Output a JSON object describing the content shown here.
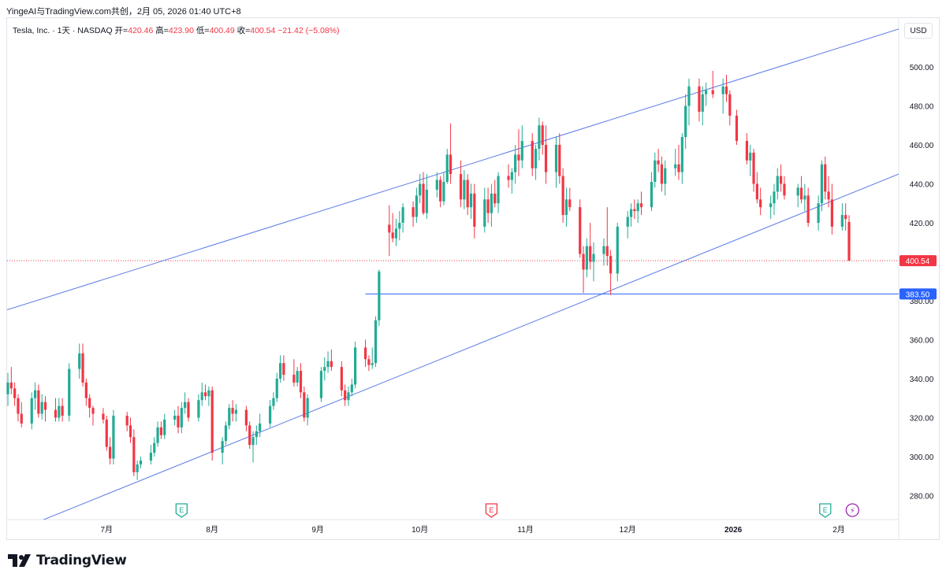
{
  "header": {
    "top_title": "YingeAI与TradingView.com共创，2月 05, 2026 01:40 UTC+8",
    "symbol": "Tesla, Inc. · 1天 · NASDAQ",
    "open_label": "开=",
    "open": "420.46",
    "high_label": "高=",
    "high": "423.90",
    "low_label": "低=",
    "low": "400.49",
    "close_label": "收=",
    "close": "400.54",
    "change": "−21.42 (−5.08%)"
  },
  "currency": "USD",
  "brand": "TradingView",
  "colors": {
    "up": "#22ab94",
    "down": "#f23645",
    "trend": "#5b7be8",
    "support": "#2962ff",
    "last_price": "#f23645"
  },
  "chart_data": {
    "type": "candlestick",
    "symbol": "TSLA",
    "interval": "1天",
    "ylim": [
      270,
      505
    ],
    "y_ticks": [
      "500.00",
      "480.00",
      "460.00",
      "440.00",
      "420.00",
      "400.00",
      "380.00",
      "360.00",
      "340.00",
      "320.00",
      "300.00",
      "280.00"
    ],
    "x_ticks": [
      {
        "label": "7月",
        "date": "2025-07-01"
      },
      {
        "label": "8月",
        "date": "2025-08-01"
      },
      {
        "label": "9月",
        "date": "2025-09-01"
      },
      {
        "label": "10月",
        "date": "2025-10-01"
      },
      {
        "label": "11月",
        "date": "2025-11-01"
      },
      {
        "label": "12月",
        "date": "2025-12-01"
      },
      {
        "label": "2026",
        "date": "2026-01-01"
      },
      {
        "label": "2月",
        "date": "2026-02-01"
      }
    ],
    "last_price": {
      "value": 400.54,
      "label": "400.54"
    },
    "support_line": {
      "value": 383.5,
      "label": "383.50",
      "from_date": "2025-09-15"
    },
    "channel": {
      "upper": [
        {
          "date": "2025-06-03",
          "value": 376
        },
        {
          "date": "2026-01-27",
          "value": 507
        }
      ],
      "lower": [
        {
          "date": "2025-06-13",
          "value": 268
        },
        {
          "date": "2026-02-20",
          "value": 446
        }
      ]
    },
    "events": [
      {
        "type": "earnings",
        "label": "E",
        "date": "2025-07-23",
        "state": "reported"
      },
      {
        "type": "earnings",
        "label": "E",
        "date": "2025-10-22",
        "state": "reported-negative"
      },
      {
        "type": "earnings",
        "label": "E",
        "date": "2026-01-28",
        "state": "reported"
      },
      {
        "type": "dividend-split",
        "label": "⚡",
        "date": "2026-02-05",
        "state": "upcoming"
      }
    ],
    "ohlc": [
      [
        "2025-06-02",
        332,
        343,
        326,
        338
      ],
      [
        "2025-06-03",
        338,
        346,
        332,
        335
      ],
      [
        "2025-06-04",
        335,
        338,
        326,
        330
      ],
      [
        "2025-06-05",
        330,
        332,
        318,
        322
      ],
      [
        "2025-06-06",
        322,
        328,
        315,
        317
      ],
      [
        "2025-06-09",
        317,
        333,
        314,
        330
      ],
      [
        "2025-06-10",
        330,
        338,
        324,
        334
      ],
      [
        "2025-06-11",
        334,
        337,
        320,
        322
      ],
      [
        "2025-06-12",
        322,
        332,
        319,
        328
      ],
      [
        "2025-06-13",
        328,
        331,
        318,
        324
      ],
      [
        "2025-06-16",
        324,
        330,
        318,
        320
      ],
      [
        "2025-06-17",
        320,
        330,
        318,
        326
      ],
      [
        "2025-06-18",
        326,
        330,
        318,
        321
      ],
      [
        "2025-06-20",
        321,
        348,
        318,
        345
      ],
      [
        "2025-06-23",
        345,
        358,
        340,
        353
      ],
      [
        "2025-06-24",
        353,
        358,
        336,
        338
      ],
      [
        "2025-06-25",
        338,
        340,
        326,
        330
      ],
      [
        "2025-06-26",
        330,
        332,
        320,
        325
      ],
      [
        "2025-06-27",
        325,
        326,
        316,
        322
      ],
      [
        "2025-06-30",
        322,
        325,
        317,
        319
      ],
      [
        "2025-07-01",
        319,
        321,
        303,
        305
      ],
      [
        "2025-07-02",
        305,
        310,
        296,
        299
      ],
      [
        "2025-07-03",
        299,
        324,
        296,
        321
      ],
      [
        "2025-07-07",
        321,
        323,
        313,
        316
      ],
      [
        "2025-07-08",
        316,
        320,
        307,
        310
      ],
      [
        "2025-07-09",
        310,
        314,
        290,
        292
      ],
      [
        "2025-07-10",
        292,
        298,
        288,
        296
      ],
      [
        "2025-07-11",
        296,
        300,
        294,
        298
      ],
      [
        "2025-07-14",
        298,
        306,
        296,
        302
      ],
      [
        "2025-07-15",
        302,
        310,
        300,
        307
      ],
      [
        "2025-07-16",
        307,
        318,
        305,
        315
      ],
      [
        "2025-07-17",
        315,
        318,
        309,
        311
      ],
      [
        "2025-07-18",
        311,
        322,
        309,
        319
      ],
      [
        "2025-07-21",
        319,
        324,
        316,
        321
      ],
      [
        "2025-07-22",
        321,
        326,
        312,
        315
      ],
      [
        "2025-07-23",
        315,
        328,
        312,
        325
      ],
      [
        "2025-07-24",
        325,
        333,
        322,
        328
      ],
      [
        "2025-07-25",
        328,
        330,
        318,
        320
      ],
      [
        "2025-07-28",
        320,
        332,
        318,
        329
      ],
      [
        "2025-07-29",
        329,
        338,
        326,
        333
      ],
      [
        "2025-07-30",
        333,
        337,
        329,
        331
      ],
      [
        "2025-07-31",
        331,
        336,
        326,
        334
      ],
      [
        "2025-08-01",
        334,
        336,
        298,
        302
      ],
      [
        "2025-08-04",
        302,
        310,
        296,
        308
      ],
      [
        "2025-08-05",
        308,
        318,
        306,
        316
      ],
      [
        "2025-08-06",
        316,
        327,
        314,
        325
      ],
      [
        "2025-08-07",
        325,
        329,
        318,
        322
      ],
      [
        "2025-08-08",
        322,
        327,
        318,
        324
      ],
      [
        "2025-08-11",
        324,
        326,
        313,
        316
      ],
      [
        "2025-08-12",
        316,
        318,
        304,
        306
      ],
      [
        "2025-08-13",
        306,
        313,
        297,
        310
      ],
      [
        "2025-08-14",
        310,
        316,
        306,
        313
      ],
      [
        "2025-08-15",
        313,
        322,
        310,
        317
      ],
      [
        "2025-08-18",
        317,
        329,
        315,
        326
      ],
      [
        "2025-08-19",
        326,
        333,
        324,
        330
      ],
      [
        "2025-08-20",
        330,
        343,
        328,
        340
      ],
      [
        "2025-08-21",
        340,
        352,
        338,
        348
      ],
      [
        "2025-08-22",
        348,
        352,
        339,
        342
      ],
      [
        "2025-08-25",
        342,
        350,
        336,
        338
      ],
      [
        "2025-08-26",
        338,
        346,
        336,
        344
      ],
      [
        "2025-08-27",
        344,
        348,
        330,
        333
      ],
      [
        "2025-08-28",
        333,
        336,
        318,
        320
      ],
      [
        "2025-08-29",
        320,
        332,
        316,
        330
      ],
      [
        "2025-09-02",
        330,
        346,
        328,
        344
      ],
      [
        "2025-09-03",
        344,
        351,
        339,
        346
      ],
      [
        "2025-09-04",
        346,
        354,
        343,
        349
      ],
      [
        "2025-09-05",
        349,
        355,
        344,
        346
      ],
      [
        "2025-09-08",
        346,
        349,
        331,
        334
      ],
      [
        "2025-09-09",
        334,
        337,
        326,
        329
      ],
      [
        "2025-09-10",
        329,
        336,
        326,
        333
      ],
      [
        "2025-09-11",
        333,
        340,
        331,
        337
      ],
      [
        "2025-09-12",
        337,
        359,
        335,
        356
      ],
      [
        "2025-09-15",
        356,
        360,
        346,
        350
      ],
      [
        "2025-09-16",
        350,
        352,
        344,
        347
      ],
      [
        "2025-09-17",
        347,
        356,
        345,
        348
      ],
      [
        "2025-09-18",
        348,
        372,
        346,
        370
      ],
      [
        "2025-09-19",
        370,
        396,
        367,
        395
      ],
      [
        "2025-09-22",
        419,
        429,
        403,
        415
      ],
      [
        "2025-09-23",
        415,
        425,
        410,
        412
      ],
      [
        "2025-09-24",
        412,
        422,
        408,
        417
      ],
      [
        "2025-09-25",
        417,
        426,
        411,
        420
      ],
      [
        "2025-09-26",
        420,
        430,
        415,
        428
      ],
      [
        "2025-09-29",
        428,
        431,
        418,
        423
      ],
      [
        "2025-09-30",
        423,
        438,
        420,
        434
      ],
      [
        "2025-10-01",
        434,
        445,
        430,
        440
      ],
      [
        "2025-10-02",
        440,
        446,
        424,
        425
      ],
      [
        "2025-10-03",
        425,
        445,
        422,
        437
      ],
      [
        "2025-10-06",
        437,
        446,
        433,
        442
      ],
      [
        "2025-10-07",
        442,
        444,
        428,
        431
      ],
      [
        "2025-10-08",
        431,
        446,
        429,
        441
      ],
      [
        "2025-10-09",
        441,
        458,
        440,
        455
      ],
      [
        "2025-10-10",
        455,
        471,
        440,
        445
      ],
      [
        "2025-10-13",
        445,
        452,
        428,
        432
      ],
      [
        "2025-10-14",
        432,
        447,
        427,
        442
      ],
      [
        "2025-10-15",
        442,
        445,
        424,
        428
      ],
      [
        "2025-10-16",
        428,
        440,
        422,
        435
      ],
      [
        "2025-10-17",
        435,
        440,
        412,
        418
      ],
      [
        "2025-10-20",
        418,
        438,
        415,
        432
      ],
      [
        "2025-10-21",
        432,
        438,
        420,
        425
      ],
      [
        "2025-10-22",
        425,
        440,
        418,
        435
      ],
      [
        "2025-10-23",
        435,
        442,
        428,
        430
      ],
      [
        "2025-10-24",
        430,
        446,
        425,
        444
      ],
      [
        "2025-10-27",
        444,
        450,
        438,
        442
      ],
      [
        "2025-10-28",
        442,
        448,
        435,
        446
      ],
      [
        "2025-10-29",
        446,
        460,
        440,
        455
      ],
      [
        "2025-10-30",
        455,
        468,
        444,
        452
      ],
      [
        "2025-10-31",
        452,
        470,
        448,
        462
      ],
      [
        "2025-11-03",
        462,
        466,
        444,
        448
      ],
      [
        "2025-11-04",
        448,
        460,
        442,
        458
      ],
      [
        "2025-11-05",
        458,
        474,
        452,
        470
      ],
      [
        "2025-11-06",
        470,
        472,
        455,
        460
      ],
      [
        "2025-11-07",
        460,
        470,
        440,
        446
      ],
      [
        "2025-11-10",
        446,
        464,
        438,
        460
      ],
      [
        "2025-11-11",
        460,
        466,
        440,
        444
      ],
      [
        "2025-11-12",
        444,
        448,
        420,
        424
      ],
      [
        "2025-11-13",
        424,
        438,
        418,
        432
      ],
      [
        "2025-11-14",
        432,
        438,
        426,
        428
      ],
      [
        "2025-11-17",
        428,
        432,
        402,
        404
      ],
      [
        "2025-11-18",
        404,
        408,
        384,
        396
      ],
      [
        "2025-11-19",
        396,
        412,
        392,
        408
      ],
      [
        "2025-11-20",
        408,
        420,
        396,
        400
      ],
      [
        "2025-11-21",
        400,
        410,
        390,
        404
      ],
      [
        "2025-11-24",
        404,
        412,
        398,
        408
      ],
      [
        "2025-11-25",
        408,
        428,
        398,
        403
      ],
      [
        "2025-11-26",
        403,
        406,
        383,
        394
      ],
      [
        "2025-11-28",
        394,
        420,
        390,
        418
      ],
      [
        "2025-12-01",
        418,
        426,
        412,
        423
      ],
      [
        "2025-12-02",
        423,
        430,
        418,
        427
      ],
      [
        "2025-12-03",
        427,
        432,
        422,
        426
      ],
      [
        "2025-12-04",
        426,
        432,
        420,
        430
      ],
      [
        "2025-12-05",
        430,
        436,
        424,
        428
      ],
      [
        "2025-12-08",
        428,
        446,
        426,
        441
      ],
      [
        "2025-12-09",
        441,
        456,
        438,
        452
      ],
      [
        "2025-12-10",
        452,
        458,
        446,
        450
      ],
      [
        "2025-12-11",
        450,
        454,
        436,
        440
      ],
      [
        "2025-12-12",
        440,
        452,
        434,
        448
      ],
      [
        "2025-12-15",
        448,
        458,
        444,
        450
      ],
      [
        "2025-12-16",
        450,
        460,
        442,
        446
      ],
      [
        "2025-12-17",
        446,
        466,
        440,
        464
      ],
      [
        "2025-12-18",
        464,
        486,
        458,
        480
      ],
      [
        "2025-12-19",
        480,
        494,
        470,
        490
      ],
      [
        "2025-12-22",
        490,
        494,
        472,
        477
      ],
      [
        "2025-12-23",
        477,
        490,
        470,
        486
      ],
      [
        "2025-12-24",
        486,
        492,
        480,
        488
      ],
      [
        "2025-12-26",
        488,
        498,
        484,
        486
      ],
      [
        "2025-12-29",
        486,
        494,
        476,
        490
      ],
      [
        "2025-12-30",
        490,
        496,
        482,
        486
      ],
      [
        "2025-12-31",
        486,
        488,
        470,
        475
      ],
      [
        "2026-01-02",
        475,
        478,
        460,
        462
      ],
      [
        "2026-01-05",
        462,
        466,
        450,
        452
      ],
      [
        "2026-01-06",
        452,
        460,
        444,
        456
      ],
      [
        "2026-01-07",
        456,
        458,
        436,
        440
      ],
      [
        "2026-01-08",
        440,
        446,
        430,
        432
      ],
      [
        "2026-01-09",
        432,
        438,
        424,
        428
      ],
      [
        "2026-01-12",
        428,
        434,
        422,
        430
      ],
      [
        "2026-01-13",
        430,
        440,
        424,
        436
      ],
      [
        "2026-01-14",
        436,
        448,
        432,
        444
      ],
      [
        "2026-01-15",
        444,
        450,
        436,
        440
      ],
      [
        "2026-01-16",
        440,
        444,
        432,
        434
      ],
      [
        "2026-01-20",
        434,
        440,
        428,
        438
      ],
      [
        "2026-01-21",
        438,
        444,
        430,
        432
      ],
      [
        "2026-01-22",
        432,
        440,
        426,
        434
      ],
      [
        "2026-01-23",
        434,
        438,
        418,
        420
      ],
      [
        "2026-01-26",
        420,
        434,
        416,
        430
      ],
      [
        "2026-01-27",
        430,
        452,
        426,
        450
      ],
      [
        "2026-01-28",
        450,
        454,
        432,
        436
      ],
      [
        "2026-01-29",
        436,
        444,
        428,
        432
      ],
      [
        "2026-01-30",
        432,
        440,
        414,
        418
      ],
      [
        "2026-02-02",
        418,
        430,
        416,
        424
      ],
      [
        "2026-02-03",
        424,
        430,
        416,
        421.96
      ],
      [
        "2026-02-04",
        420.46,
        423.9,
        400.49,
        400.54
      ]
    ]
  }
}
